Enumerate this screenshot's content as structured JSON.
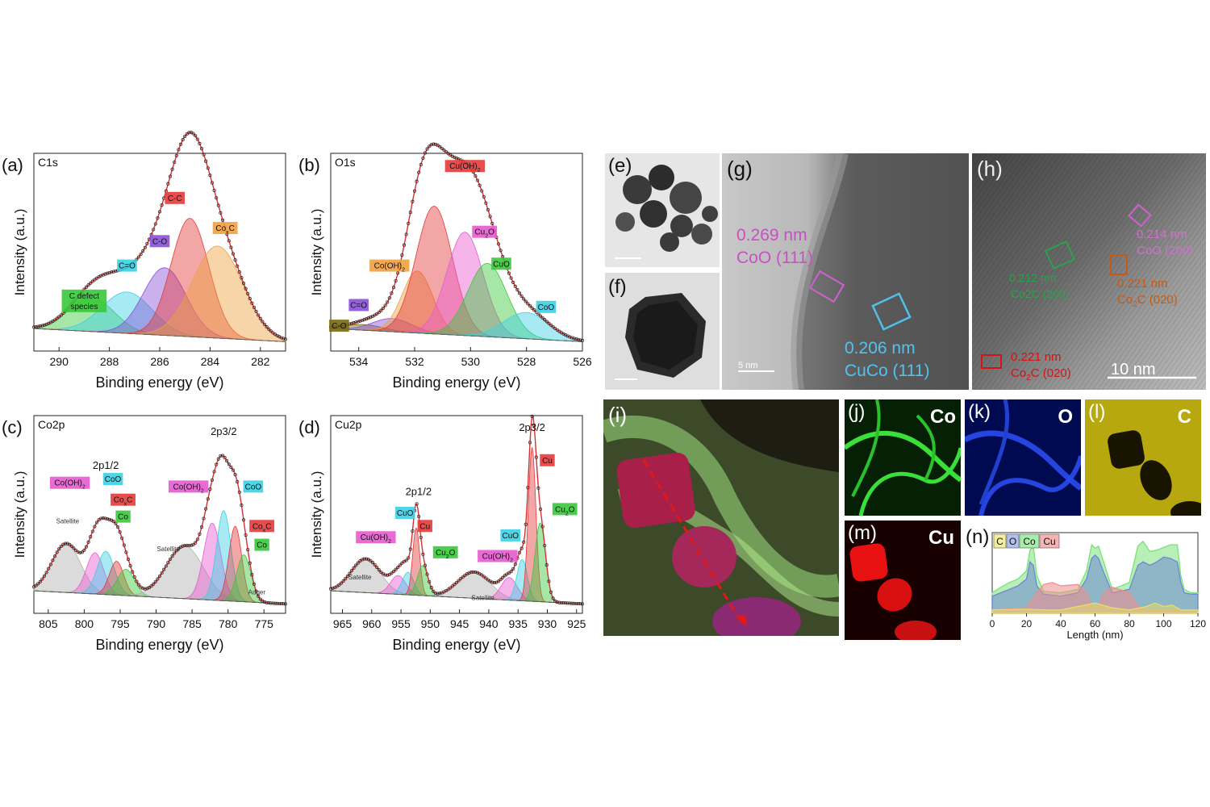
{
  "colors": {
    "green": "#39c83a",
    "cyan": "#3bd0e6",
    "purple": "#8a4fd8",
    "red": "#e43a3a",
    "orange": "#f0a040",
    "pink": "#e85ad0",
    "gray": "#b0b0b0",
    "dark_olive": "#7a6a10",
    "label_pink": "#c94fc7",
    "label_cyan": "#3fb9e0",
    "label_green": "#2aa24a",
    "label_orange": "#c75a10",
    "label_red": "#d01515"
  },
  "chart_data": [
    {
      "panel": "(a)",
      "type": "line",
      "title": "C1s",
      "xlabel": "Binding energy (eV)",
      "ylabel": "Intensity (a.u.)",
      "xlim": [
        291,
        281
      ],
      "xticks": [
        290,
        288,
        286,
        284,
        282
      ],
      "ylim": [
        0,
        1
      ],
      "peaks": [
        {
          "name": "C defect species",
          "center": 288.7,
          "height": 0.18,
          "width": 0.9,
          "color": "green"
        },
        {
          "name": "C=O",
          "center": 287.3,
          "height": 0.22,
          "width": 1.0,
          "color": "cyan"
        },
        {
          "name": "C-O",
          "center": 285.8,
          "height": 0.36,
          "width": 0.85,
          "color": "purple"
        },
        {
          "name": "C-C",
          "center": 284.8,
          "height": 0.63,
          "width": 0.75,
          "color": "red"
        },
        {
          "name": "CoxC",
          "center": 283.7,
          "height": 0.49,
          "width": 1.0,
          "color": "orange"
        }
      ],
      "labels": [
        {
          "text": "C defect",
          "text2": "species",
          "x": 289.0,
          "y": 0.28,
          "color": "green"
        },
        {
          "text": "C=O",
          "x": 287.3,
          "y": 0.44,
          "color": "cyan"
        },
        {
          "text": "C-O",
          "x": 286.0,
          "y": 0.57,
          "color": "purple"
        },
        {
          "text": "C-C",
          "x": 285.4,
          "y": 0.8,
          "color": "red"
        },
        {
          "text": "Co",
          "sub": "x",
          "tail": "C",
          "x": 283.4,
          "y": 0.64,
          "color": "orange"
        }
      ]
    },
    {
      "panel": "(b)",
      "type": "line",
      "title": "O1s",
      "xlabel": "Binding energy (eV)",
      "ylabel": "Intensity (a.u.)",
      "xlim": [
        535,
        526
      ],
      "xticks": [
        534,
        532,
        530,
        528,
        526
      ],
      "ylim": [
        0,
        1
      ],
      "peaks": [
        {
          "name": "C-O",
          "center": 533.8,
          "height": 0.03,
          "width": 0.7,
          "color": "dark_olive"
        },
        {
          "name": "C=O",
          "center": 532.8,
          "height": 0.07,
          "width": 0.7,
          "color": "purple"
        },
        {
          "name": "Co(OH)2",
          "center": 531.9,
          "height": 0.33,
          "width": 0.55,
          "color": "orange"
        },
        {
          "name": "Cu(OH)2",
          "center": 531.3,
          "height": 0.68,
          "width": 0.65,
          "color": "red"
        },
        {
          "name": "Cu2O",
          "center": 530.2,
          "height": 0.55,
          "width": 0.65,
          "color": "pink"
        },
        {
          "name": "CuO",
          "center": 529.4,
          "height": 0.39,
          "width": 0.7,
          "color": "green"
        },
        {
          "name": "CoO",
          "center": 528.0,
          "height": 0.14,
          "width": 0.8,
          "color": "cyan"
        }
      ],
      "labels": [
        {
          "text": "Cu(OH)",
          "sub": "2",
          "x": 530.2,
          "y": 0.97,
          "color": "red"
        },
        {
          "text": "Co(OH)",
          "sub": "2",
          "x": 532.9,
          "y": 0.44,
          "color": "orange"
        },
        {
          "text": "C=O",
          "x": 534.0,
          "y": 0.23,
          "color": "purple"
        },
        {
          "text": "C-O",
          "x": 534.7,
          "y": 0.12,
          "color": "dark_olive"
        },
        {
          "text": "Cu",
          "sub": "2",
          "tail": "O",
          "x": 529.5,
          "y": 0.62,
          "color": "pink"
        },
        {
          "text": "CuO",
          "x": 528.9,
          "y": 0.45,
          "color": "green"
        },
        {
          "text": "CoO",
          "x": 527.3,
          "y": 0.22,
          "color": "cyan"
        }
      ]
    },
    {
      "panel": "(c)",
      "type": "line",
      "title": "Co2p",
      "xlabel": "Binding energy (eV)",
      "ylabel": "Intensity (a.u.)",
      "xlim": [
        807,
        772
      ],
      "xticks": [
        805,
        800,
        795,
        790,
        785,
        780,
        775
      ],
      "ylim": [
        0,
        1
      ],
      "peaks": [
        {
          "name": "Satellite",
          "center": 802.5,
          "height": 0.26,
          "width": 2.0,
          "color": "gray"
        },
        {
          "name": "Co(OH)2",
          "center": 798.5,
          "height": 0.22,
          "width": 1.2,
          "color": "pink"
        },
        {
          "name": "CoO",
          "center": 797.0,
          "height": 0.23,
          "width": 1.2,
          "color": "cyan"
        },
        {
          "name": "CoxC",
          "center": 795.5,
          "height": 0.18,
          "width": 1.0,
          "color": "red"
        },
        {
          "name": "Co",
          "center": 794.2,
          "height": 0.14,
          "width": 1.2,
          "color": "green"
        },
        {
          "name": "Satellite",
          "center": 786.0,
          "height": 0.28,
          "width": 2.6,
          "color": "gray"
        },
        {
          "name": "Co(OH)2",
          "center": 782.2,
          "height": 0.41,
          "width": 1.2,
          "color": "pink"
        },
        {
          "name": "CoO",
          "center": 780.6,
          "height": 0.48,
          "width": 1.0,
          "color": "cyan"
        },
        {
          "name": "CoxC",
          "center": 779.0,
          "height": 0.4,
          "width": 0.9,
          "color": "red"
        },
        {
          "name": "Co",
          "center": 777.8,
          "height": 0.25,
          "width": 1.0,
          "color": "green"
        }
      ],
      "labels": [
        {
          "text": "2p1/2",
          "x": 797.0,
          "y": 0.77,
          "color": "none"
        },
        {
          "text": "2p3/2",
          "x": 780.6,
          "y": 0.95,
          "color": "none"
        },
        {
          "text": "Co(OH)",
          "sub": "2",
          "x": 802.0,
          "y": 0.68,
          "color": "pink"
        },
        {
          "text": "CoO",
          "x": 796.0,
          "y": 0.7,
          "color": "cyan"
        },
        {
          "text": "Co",
          "sub": "x",
          "tail": "C",
          "x": 794.6,
          "y": 0.59,
          "color": "red"
        },
        {
          "text": "Co",
          "x": 794.6,
          "y": 0.5,
          "color": "green"
        },
        {
          "text": "Co(OH)",
          "sub": "2",
          "x": 785.5,
          "y": 0.66,
          "color": "pink"
        },
        {
          "text": "CoO",
          "x": 776.5,
          "y": 0.66,
          "color": "cyan"
        },
        {
          "text": "Co",
          "sub": "x",
          "tail": "C",
          "x": 775.3,
          "y": 0.45,
          "color": "red"
        },
        {
          "text": "Co",
          "x": 775.3,
          "y": 0.35,
          "color": "green"
        },
        {
          "text": "Satellite",
          "x": 802.3,
          "y": 0.48,
          "color": "gray",
          "small": true
        },
        {
          "text": "Satellite",
          "x": 788.3,
          "y": 0.33,
          "color": "gray",
          "small": true
        },
        {
          "text": "Auger",
          "x": 776.0,
          "y": 0.1,
          "color": "gray",
          "small": true
        }
      ]
    },
    {
      "panel": "(d)",
      "type": "line",
      "title": "Cu2p",
      "xlabel": "Binding energy (eV)",
      "ylabel": "Intensity (a.u.)",
      "xlim": [
        967,
        924
      ],
      "xticks": [
        965,
        960,
        955,
        950,
        945,
        940,
        935,
        930,
        925
      ],
      "ylim": [
        0,
        1
      ],
      "peaks": [
        {
          "name": "Satellite",
          "center": 961.0,
          "height": 0.18,
          "width": 2.5,
          "color": "gray"
        },
        {
          "name": "Cu(OH)2",
          "center": 955.5,
          "height": 0.1,
          "width": 1.3,
          "color": "pink"
        },
        {
          "name": "CuO",
          "center": 953.8,
          "height": 0.12,
          "width": 1.0,
          "color": "cyan"
        },
        {
          "name": "Cu",
          "center": 952.4,
          "height": 0.36,
          "width": 0.6,
          "color": "red"
        },
        {
          "name": "Cu2O",
          "center": 951.3,
          "height": 0.16,
          "width": 0.9,
          "color": "green"
        },
        {
          "name": "Satellite",
          "center": 942.5,
          "height": 0.14,
          "width": 2.8,
          "color": "gray"
        },
        {
          "name": "Cu(OH)2",
          "center": 936.5,
          "height": 0.12,
          "width": 1.4,
          "color": "pink"
        },
        {
          "name": "CuO",
          "center": 934.3,
          "height": 0.22,
          "width": 0.9,
          "color": "cyan"
        },
        {
          "name": "Cu",
          "center": 932.6,
          "height": 0.82,
          "width": 0.65,
          "color": "red"
        },
        {
          "name": "Cu2O",
          "center": 931.2,
          "height": 0.42,
          "width": 0.9,
          "color": "green"
        }
      ],
      "labels": [
        {
          "text": "2p3/2",
          "x": 932.6,
          "y": 0.97,
          "color": "none"
        },
        {
          "text": "2p1/2",
          "x": 952.0,
          "y": 0.63,
          "color": "none"
        },
        {
          "text": "CuO",
          "x": 954.3,
          "y": 0.52,
          "color": "cyan"
        },
        {
          "text": "Cu",
          "x": 950.9,
          "y": 0.45,
          "color": "red"
        },
        {
          "text": "Cu(OH)",
          "sub": "2",
          "x": 959.3,
          "y": 0.39,
          "color": "pink"
        },
        {
          "text": "Cu",
          "sub": "2",
          "tail": "O",
          "x": 947.4,
          "y": 0.31,
          "color": "green"
        },
        {
          "text": "Cu(OH)",
          "sub": "2",
          "x": 938.5,
          "y": 0.29,
          "color": "pink"
        },
        {
          "text": "CuO",
          "x": 936.3,
          "y": 0.4,
          "color": "cyan"
        },
        {
          "text": "Cu",
          "x": 930.0,
          "y": 0.8,
          "color": "red"
        },
        {
          "text": "Cu",
          "sub": "2",
          "tail": "O",
          "x": 927.0,
          "y": 0.54,
          "color": "green"
        },
        {
          "text": "Satellite",
          "x": 962.0,
          "y": 0.18,
          "color": "gray",
          "small": true
        },
        {
          "text": "Satellite",
          "x": 941.0,
          "y": 0.07,
          "color": "gray",
          "small": true
        }
      ]
    },
    {
      "panel": "(n)",
      "type": "area",
      "title": "",
      "xlabel": "Length (nm)",
      "ylabel": "",
      "xlim": [
        0,
        120
      ],
      "xticks": [
        0,
        20,
        40,
        60,
        80,
        100,
        120
      ],
      "legend": [
        "C",
        "O",
        "Co",
        "Cu"
      ],
      "series": [
        {
          "name": "Co",
          "color": "#7be27b",
          "x": [
            0,
            5,
            10,
            15,
            20,
            22,
            24,
            26,
            30,
            40,
            50,
            55,
            58,
            60,
            62,
            65,
            70,
            80,
            85,
            88,
            92,
            96,
            100,
            104,
            108,
            110,
            112,
            116,
            120
          ],
          "y": [
            0.3,
            0.38,
            0.45,
            0.5,
            0.62,
            0.92,
            0.98,
            0.55,
            0.32,
            0.3,
            0.35,
            0.62,
            1.0,
            0.95,
            0.98,
            0.75,
            0.35,
            0.45,
            0.98,
            1.05,
            0.9,
            0.92,
            0.96,
            1.0,
            1.0,
            0.55,
            0.35,
            0.3,
            0.3
          ]
        },
        {
          "name": "O",
          "color": "#6f86d6",
          "x": [
            0,
            5,
            10,
            15,
            20,
            22,
            24,
            26,
            30,
            40,
            50,
            55,
            58,
            60,
            62,
            65,
            70,
            80,
            85,
            88,
            92,
            96,
            100,
            104,
            108,
            110,
            112,
            116,
            120
          ],
          "y": [
            0.25,
            0.3,
            0.35,
            0.4,
            0.5,
            0.75,
            0.7,
            0.4,
            0.28,
            0.25,
            0.3,
            0.5,
            0.8,
            0.85,
            0.8,
            0.6,
            0.3,
            0.35,
            0.7,
            0.75,
            0.7,
            0.75,
            0.82,
            0.8,
            0.75,
            0.45,
            0.3,
            0.28,
            0.28
          ]
        },
        {
          "name": "Cu",
          "color": "#f08c8c",
          "x": [
            0,
            20,
            26,
            30,
            35,
            40,
            50,
            55,
            58,
            62,
            65,
            70,
            80,
            85,
            90,
            100,
            110,
            120
          ],
          "y": [
            0.05,
            0.08,
            0.3,
            0.42,
            0.45,
            0.4,
            0.42,
            0.3,
            0.1,
            0.1,
            0.3,
            0.38,
            0.3,
            0.1,
            0.05,
            0.05,
            0.05,
            0.05
          ]
        },
        {
          "name": "C",
          "color": "#e8dd66",
          "x": [
            0,
            20,
            30,
            40,
            50,
            60,
            70,
            80,
            90,
            95,
            100,
            105,
            110,
            120
          ],
          "y": [
            0.05,
            0.06,
            0.05,
            0.05,
            0.1,
            0.15,
            0.08,
            0.05,
            0.1,
            0.15,
            0.1,
            0.12,
            0.05,
            0.05
          ]
        }
      ]
    }
  ],
  "images": {
    "e": {
      "label": "(e)"
    },
    "f": {
      "label": "(f)"
    },
    "g": {
      "label": "(g)",
      "ann1_a": "0.269 nm",
      "ann1_b": "CoO (111)",
      "ann2_a": "0.206 nm",
      "ann2_b": "CuCo (111)",
      "scale": "5 nm"
    },
    "h": {
      "label": "(h)",
      "ann1_a": "0.214 nm",
      "ann1_b": "CoO (200)",
      "ann2_a": "0.221 nm",
      "ann2_b_pre": "Co",
      "ann2_b_sub": "2",
      "ann2_b_post": "C (020)",
      "ann3_a": "0.221 nm",
      "ann3_b_pre": "Co",
      "ann3_b_sub": "2",
      "ann3_b_post": "C (020)",
      "ann4_a": "0.212 nm",
      "ann4_b": "Co2C (200)",
      "scale": "10 nm"
    },
    "i": {
      "label": "(i)"
    },
    "j": {
      "label": "(j)",
      "element": "Co"
    },
    "k": {
      "label": "(k)",
      "element": "O"
    },
    "l": {
      "label": "(l)",
      "element": "C"
    },
    "m": {
      "label": "(m)",
      "element": "Cu"
    },
    "n": {
      "label": "(n)"
    }
  }
}
